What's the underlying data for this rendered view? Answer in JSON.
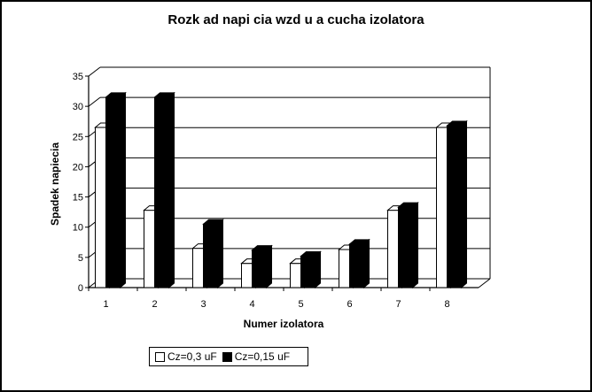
{
  "chart_data": {
    "type": "bar",
    "title": "Rozk ad napi  cia wzd u    a  cucha izolatora",
    "xlabel": "Numer izolatora",
    "ylabel": "Spadek napiecia",
    "categories": [
      "1",
      "2",
      "3",
      "4",
      "5",
      "6",
      "7",
      "8"
    ],
    "ylim": [
      0,
      35
    ],
    "yticks": [
      "0",
      "5",
      "10",
      "15",
      "20",
      "25",
      "30",
      "35"
    ],
    "grid": true,
    "legend_position": "bottom-left",
    "series": [
      {
        "name": "Cz=0,3 uF",
        "color": "#ffffff",
        "values": [
          26.5,
          12.8,
          6.5,
          4.0,
          4.0,
          6.3,
          12.8,
          26.5
        ]
      },
      {
        "name": "Cz=0,15 uF",
        "color": "#000000",
        "values": [
          31.5,
          31.5,
          10.5,
          6.2,
          5.2,
          7.2,
          13.3,
          26.8
        ]
      }
    ]
  }
}
